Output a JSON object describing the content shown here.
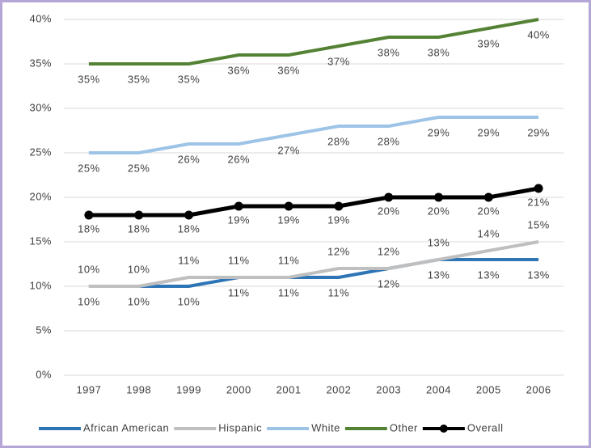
{
  "chart_data": {
    "type": "line",
    "categories": [
      "1997",
      "1998",
      "1999",
      "2000",
      "2001",
      "2002",
      "2003",
      "2004",
      "2005",
      "2006"
    ],
    "ylim": [
      0,
      40
    ],
    "yticks": [
      {
        "value": 0,
        "label": "0%"
      },
      {
        "value": 5,
        "label": "5%"
      },
      {
        "value": 10,
        "label": "10%"
      },
      {
        "value": 15,
        "label": "15%"
      },
      {
        "value": 20,
        "label": "20%"
      },
      {
        "value": 25,
        "label": "25%"
      },
      {
        "value": 30,
        "label": "30%"
      },
      {
        "value": 35,
        "label": "35%"
      },
      {
        "value": 40,
        "label": "40%"
      }
    ],
    "grid": true,
    "legend": "bottom",
    "series": [
      {
        "name": "African American",
        "color": "#2e75b6",
        "values": [
          10,
          10,
          10,
          11,
          11,
          11,
          12,
          13,
          13,
          13
        ],
        "value_labels": [
          "10%",
          "10%",
          "10%",
          "11%",
          "11%",
          "11%",
          "12%",
          "13%",
          "13%",
          "13%"
        ]
      },
      {
        "name": "Hispanic",
        "color": "#bfbfbf",
        "values": [
          10,
          10,
          11,
          11,
          11,
          12,
          12,
          13,
          14,
          15
        ],
        "value_labels": [
          "10%",
          "10%",
          "11%",
          "11%",
          "11%",
          "12%",
          "12%",
          "13%",
          "14%",
          "15%"
        ]
      },
      {
        "name": "White",
        "color": "#9dc3e6",
        "values": [
          25,
          25,
          26,
          26,
          27,
          28,
          28,
          29,
          29,
          29
        ],
        "value_labels": [
          "25%",
          "25%",
          "26%",
          "26%",
          "27%",
          "28%",
          "28%",
          "29%",
          "29%",
          "29%"
        ]
      },
      {
        "name": "Other",
        "color": "#548235",
        "values": [
          35,
          35,
          35,
          36,
          36,
          37,
          38,
          38,
          39,
          40
        ],
        "value_labels": [
          "35%",
          "35%",
          "35%",
          "36%",
          "36%",
          "37%",
          "38%",
          "38%",
          "39%",
          "40%"
        ]
      },
      {
        "name": "Overall",
        "color": "#000000",
        "values": [
          18,
          18,
          18,
          19,
          19,
          19,
          20,
          20,
          20,
          21
        ],
        "value_labels": [
          "18%",
          "18%",
          "18%",
          "19%",
          "19%",
          "19%",
          "20%",
          "20%",
          "20%",
          "21%"
        ],
        "markers": true
      }
    ]
  }
}
